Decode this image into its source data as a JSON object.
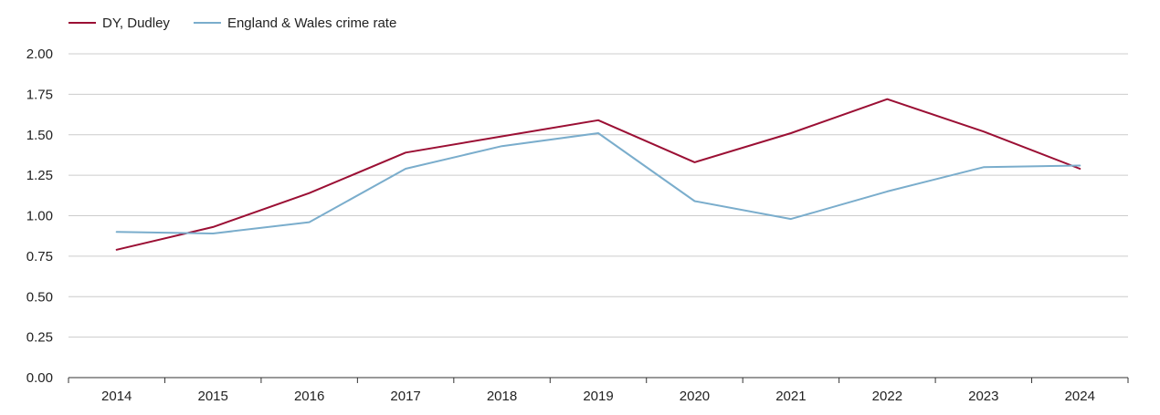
{
  "chart_data": {
    "type": "line",
    "title": "",
    "xlabel": "",
    "ylabel": "",
    "categories": [
      "2014",
      "2015",
      "2016",
      "2017",
      "2018",
      "2019",
      "2020",
      "2021",
      "2022",
      "2023",
      "2024"
    ],
    "ylim": [
      0,
      2
    ],
    "yticks": [
      "0.00",
      "0.25",
      "0.50",
      "0.75",
      "1.00",
      "1.25",
      "1.50",
      "1.75",
      "2.00"
    ],
    "ytick_values": [
      0,
      0.25,
      0.5,
      0.75,
      1.0,
      1.25,
      1.5,
      1.75,
      2.0
    ],
    "grid": true,
    "legend_position": "top-left",
    "series": [
      {
        "name": "DY, Dudley",
        "color": "#9b0f34",
        "values": [
          0.79,
          0.93,
          1.14,
          1.39,
          1.49,
          1.59,
          1.33,
          1.51,
          1.72,
          1.52,
          1.29
        ]
      },
      {
        "name": "England & Wales crime rate",
        "color": "#7aadcc",
        "values": [
          0.9,
          0.89,
          0.96,
          1.29,
          1.43,
          1.51,
          1.09,
          0.98,
          1.15,
          1.3,
          1.31
        ]
      }
    ]
  },
  "colors": {
    "grid": "#cccccc",
    "axis": "#333333",
    "text": "#222222"
  }
}
